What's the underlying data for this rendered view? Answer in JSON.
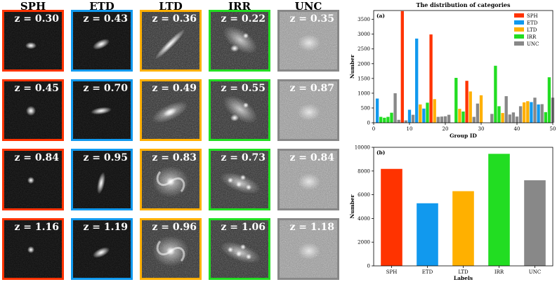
{
  "categories": [
    "SPH",
    "ETD",
    "LTD",
    "IRR",
    "UNC"
  ],
  "colors": {
    "SPH": "#ff3300",
    "ETD": "#1199ee",
    "LTD": "#ffb000",
    "IRR": "#22dd22",
    "UNC": "#888888"
  },
  "grid": {
    "rows": [
      [
        "z = 0.30",
        "z = 0.43",
        "z = 0.36",
        "z = 0.22",
        "z = 0.35"
      ],
      [
        "z = 0.45",
        "z = 0.70",
        "z = 0.49",
        "z = 0.55",
        "z = 0.87"
      ],
      [
        "z = 0.84",
        "z = 0.95",
        "z = 0.83",
        "z = 0.73",
        "z = 0.84"
      ],
      [
        "z = 1.16",
        "z = 1.19",
        "z = 0.96",
        "z = 1.06",
        "z = 1.18"
      ]
    ]
  },
  "chart_data": [
    {
      "type": "bar",
      "panel": "(a)",
      "title": "The distribution of categories",
      "xlabel": "Group ID",
      "ylabel": "Number",
      "xlim": [
        0,
        50
      ],
      "ylim": [
        0,
        3800
      ],
      "xticks": [
        0,
        10,
        20,
        30,
        40,
        50
      ],
      "yticks": [
        0,
        500,
        1000,
        1500,
        2000,
        2500,
        3000,
        3500
      ],
      "legend": [
        "SPH",
        "ETD",
        "LTD",
        "IRR",
        "UNC"
      ],
      "legend_position": "top-right",
      "series": [
        {
          "name": "SPH",
          "x": [
            8,
            16,
            26
          ],
          "values": [
            3780,
            2990,
            1420
          ]
        },
        {
          "name": "ETD",
          "x": [
            1,
            10,
            12,
            14,
            44,
            46
          ],
          "values": [
            820,
            440,
            2850,
            480,
            700,
            620
          ]
        },
        {
          "name": "LTD",
          "x": [
            13,
            17,
            24,
            27,
            30,
            36,
            42,
            43
          ],
          "values": [
            620,
            800,
            470,
            1060,
            930,
            330,
            690,
            730
          ]
        },
        {
          "name": "IRR",
          "x": [
            2,
            3,
            4,
            5,
            15,
            23,
            25,
            34,
            35,
            48,
            49
          ],
          "values": [
            200,
            170,
            200,
            340,
            680,
            1520,
            380,
            1930,
            560,
            360,
            1540
          ]
        },
        {
          "name": "UNC",
          "x": [
            6,
            7,
            9,
            11,
            18,
            19,
            20,
            21,
            28,
            29,
            33,
            37,
            38,
            39,
            40,
            41,
            45,
            47,
            50
          ],
          "values": [
            1000,
            100,
            80,
            270,
            200,
            210,
            220,
            270,
            200,
            650,
            300,
            900,
            280,
            350,
            210,
            560,
            850,
            630,
            850
          ]
        }
      ]
    },
    {
      "type": "bar",
      "panel": "(b)",
      "xlabel": "Labels",
      "ylabel": "Number",
      "ylim": [
        0,
        10000
      ],
      "yticks": [
        0,
        2000,
        4000,
        6000,
        8000,
        10000
      ],
      "categories": [
        "SPH",
        "ETD",
        "LTD",
        "IRR",
        "UNC"
      ],
      "values": [
        8180,
        5280,
        6300,
        9450,
        7220
      ]
    }
  ]
}
